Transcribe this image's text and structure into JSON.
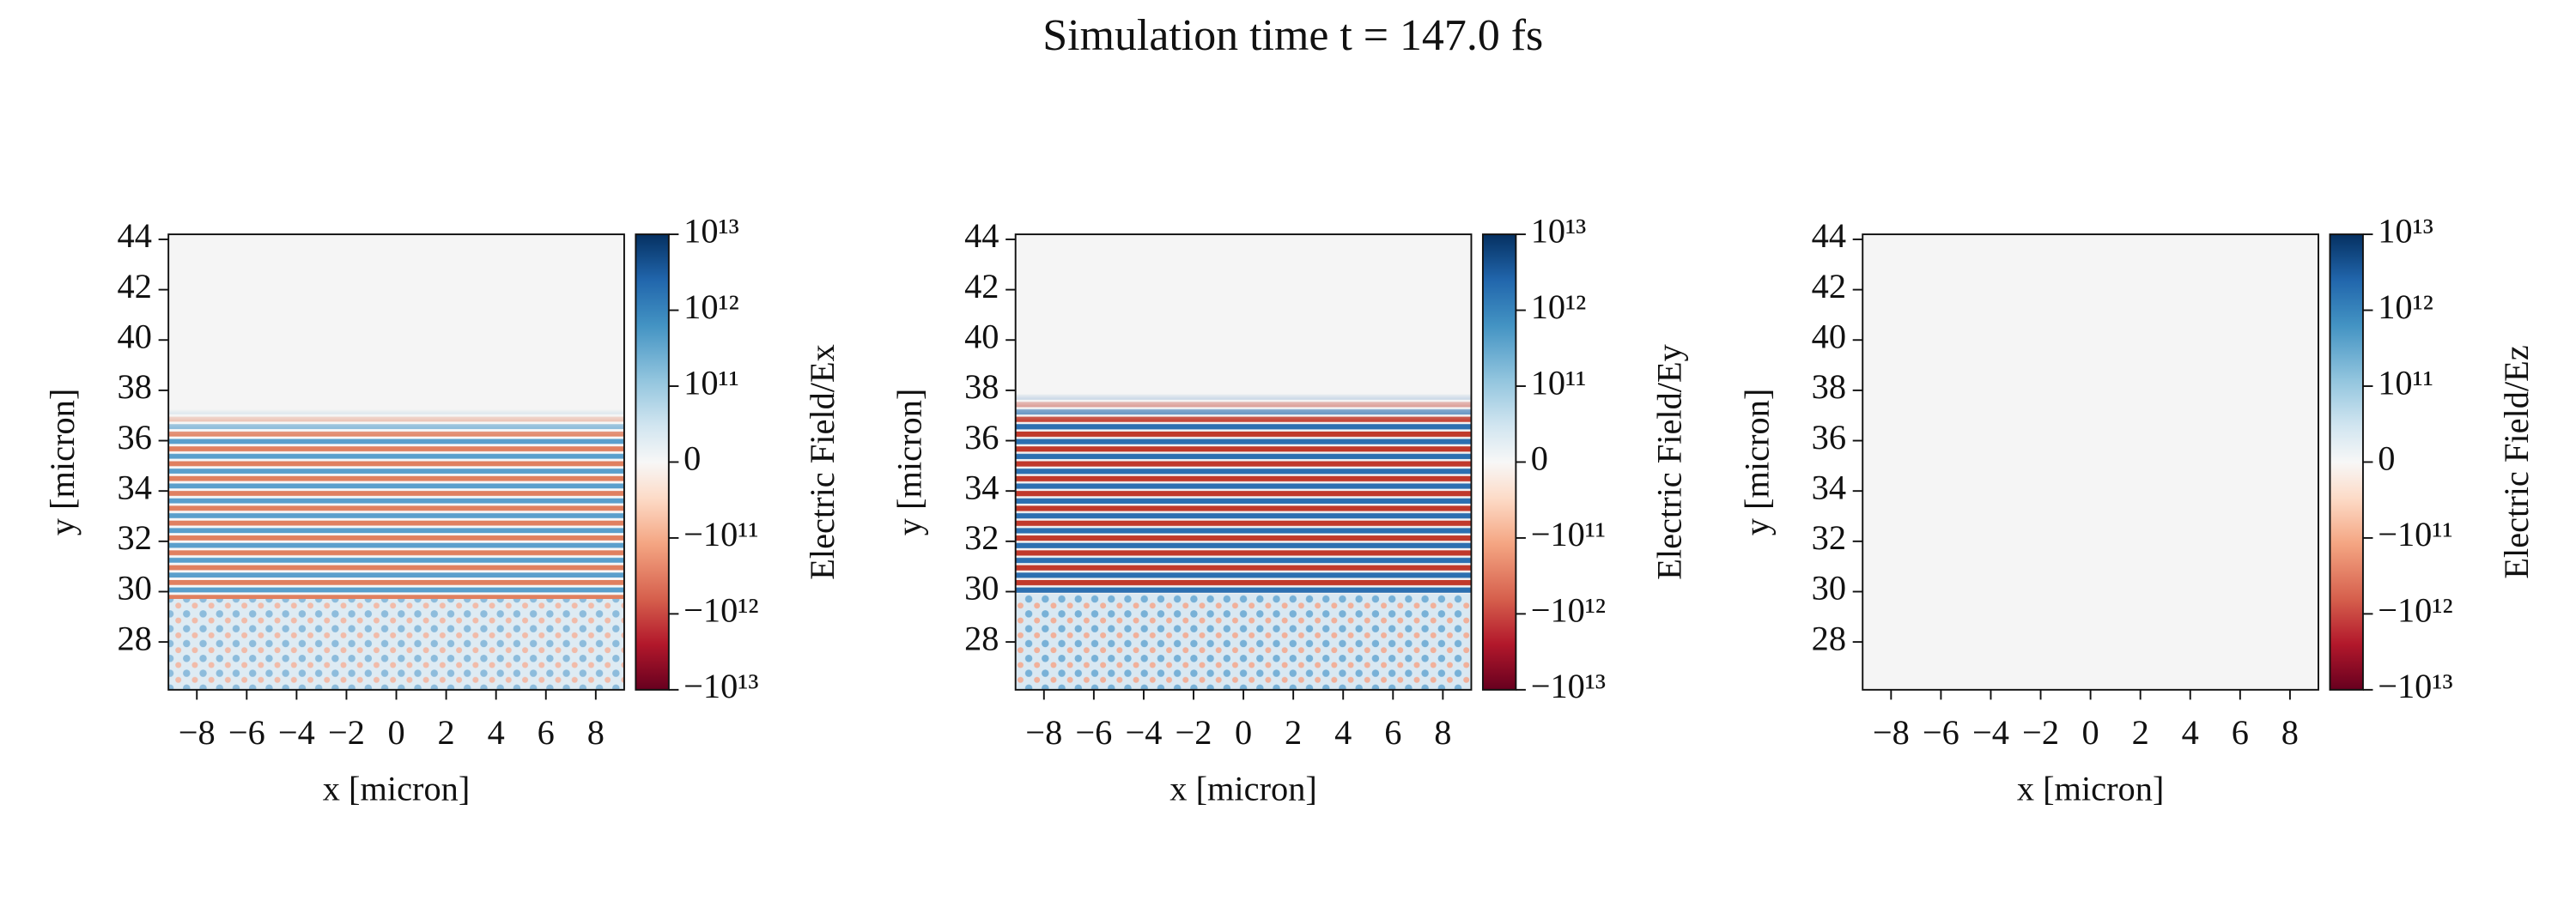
{
  "title": "Simulation time t = 147.0 fs",
  "chart_data": [
    {
      "type": "heatmap",
      "xlabel": "x [micron]",
      "ylabel": "y [micron]",
      "colorbar_label": "Electric Field/Ex",
      "xlim": [
        -9.14,
        9.14
      ],
      "ylim": [
        26.1,
        44.2
      ],
      "xticks": [
        {
          "value": -8,
          "label": "−8"
        },
        {
          "value": -6,
          "label": "−6"
        },
        {
          "value": -4,
          "label": "−4"
        },
        {
          "value": -2,
          "label": "−2"
        },
        0,
        2,
        4,
        6,
        8
      ],
      "yticks": [
        28,
        30,
        32,
        34,
        36,
        38,
        40,
        42,
        44
      ],
      "clim": [
        -10000000000000,
        10000000000000
      ],
      "cscale": "symlog",
      "linthresh": 100000000000,
      "cticks": [
        {
          "value": 10000000000000,
          "label": "10¹³"
        },
        {
          "value": 1000000000000,
          "label": "10¹²"
        },
        {
          "value": 100000000000,
          "label": "10¹¹"
        },
        0,
        {
          "value": -100000000000,
          "label": "−10¹¹"
        },
        {
          "value": -1000000000000,
          "label": "−10¹²"
        },
        {
          "value": -10000000000000,
          "label": "−10¹³"
        }
      ]
    },
    {
      "type": "heatmap",
      "xlabel": "x [micron]",
      "ylabel": "y [micron]",
      "colorbar_label": "Electric Field/Ey",
      "xlim": [
        -9.14,
        9.14
      ],
      "ylim": [
        26.1,
        44.2
      ],
      "xticks": [
        {
          "value": -8,
          "label": "−8"
        },
        {
          "value": -6,
          "label": "−6"
        },
        {
          "value": -4,
          "label": "−4"
        },
        {
          "value": -2,
          "label": "−2"
        },
        0,
        2,
        4,
        6,
        8
      ],
      "yticks": [
        28,
        30,
        32,
        34,
        36,
        38,
        40,
        42,
        44
      ],
      "clim": [
        -10000000000000,
        10000000000000
      ],
      "cscale": "symlog",
      "linthresh": 100000000000,
      "cticks": [
        {
          "value": 10000000000000,
          "label": "10¹³"
        },
        {
          "value": 1000000000000,
          "label": "10¹²"
        },
        {
          "value": 100000000000,
          "label": "10¹¹"
        },
        0,
        {
          "value": -100000000000,
          "label": "−10¹¹"
        },
        {
          "value": -1000000000000,
          "label": "−10¹²"
        },
        {
          "value": -10000000000000,
          "label": "−10¹³"
        }
      ]
    },
    {
      "type": "heatmap",
      "xlabel": "x [micron]",
      "ylabel": "y [micron]",
      "colorbar_label": "Electric Field/Ez",
      "xlim": [
        -9.14,
        9.14
      ],
      "ylim": [
        26.1,
        44.2
      ],
      "xticks": [
        {
          "value": -8,
          "label": "−8"
        },
        {
          "value": -6,
          "label": "−6"
        },
        {
          "value": -4,
          "label": "−4"
        },
        {
          "value": -2,
          "label": "−2"
        },
        0,
        2,
        4,
        6,
        8
      ],
      "yticks": [
        28,
        30,
        32,
        34,
        36,
        38,
        40,
        42,
        44
      ],
      "clim": [
        -10000000000000,
        10000000000000
      ],
      "cscale": "symlog",
      "linthresh": 100000000000,
      "cticks": [
        {
          "value": 10000000000000,
          "label": "10¹³"
        },
        {
          "value": 1000000000000,
          "label": "10¹²"
        },
        {
          "value": 100000000000,
          "label": "10¹¹"
        },
        0,
        {
          "value": -100000000000,
          "label": "−10¹¹"
        },
        {
          "value": -1000000000000,
          "label": "−10¹²"
        },
        {
          "value": -10000000000000,
          "label": "−10¹³"
        }
      ]
    }
  ]
}
